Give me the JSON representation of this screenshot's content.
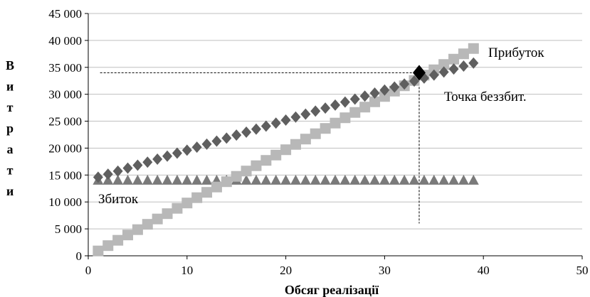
{
  "chart_data": {
    "type": "scatter",
    "title": "",
    "xlabel": "Обсяг реалізації",
    "ylabel": "Витрати",
    "xlim": [
      0,
      50
    ],
    "ylim": [
      0,
      45000
    ],
    "x_ticks": [
      "0",
      "10",
      "20",
      "30",
      "40",
      "50"
    ],
    "y_ticks": [
      "0",
      "5 000",
      "10 000",
      "15 000",
      "20 000",
      "25 000",
      "30 000",
      "35 000",
      "40 000",
      "45 000"
    ],
    "grid": "horizontal",
    "colors": {
      "total_costs": "#5f5f5f",
      "revenue": "#b8b8b8",
      "fixed_costs": "#7a7a7a",
      "break_even": "#000000"
    },
    "series": [
      {
        "key": "total_costs",
        "marker": "diamond",
        "x_range": [
          1,
          39
        ],
        "y_start": 14600,
        "y_end": 35800
      },
      {
        "key": "revenue",
        "marker": "square",
        "x_range": [
          1,
          39
        ],
        "y_start": 900,
        "y_end": 38500
      },
      {
        "key": "fixed_costs",
        "marker": "triangle",
        "x_range": [
          1,
          39
        ],
        "y_start": 14000,
        "y_end": 14000
      }
    ],
    "break_even_point": {
      "x": 33.5,
      "y": 34000
    },
    "annotations": {
      "profit": "Прибуток",
      "break_even": "Точка беззбит.",
      "loss": "Збиток"
    }
  }
}
